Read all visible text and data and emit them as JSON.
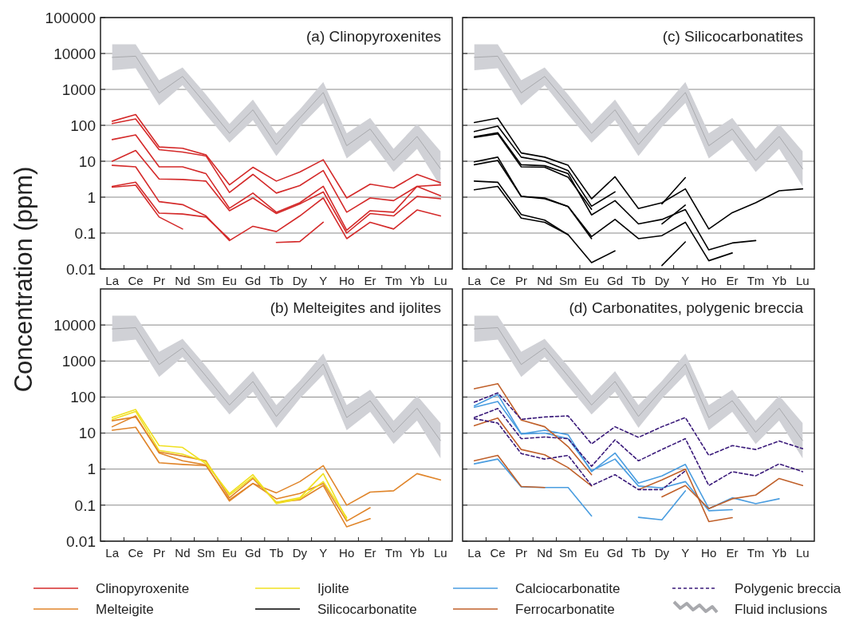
{
  "chart_data": [
    {
      "type": "line",
      "title": "(a) Clinopyroxenites",
      "ylabel": "Concentration (ppm)",
      "categories": [
        "La",
        "Ce",
        "Pr",
        "Nd",
        "Sm",
        "Eu",
        "Gd",
        "Tb",
        "Dy",
        "Y",
        "Ho",
        "Er",
        "Tm",
        "Yb",
        "Lu"
      ],
      "log": true,
      "ylim": [
        0.01,
        100000
      ],
      "yticks": [
        0.01,
        0.1,
        1,
        10,
        100,
        1000,
        10000,
        100000
      ],
      "grid": "y",
      "legend": "bottom",
      "series": [
        {
          "name": "Clinopyroxenite",
          "color": "#d42a2a",
          "values": [
            130,
            200,
            25,
            23,
            15,
            2.2,
            6.8,
            2.8,
            5,
            11,
            0.95,
            2.3,
            1.8,
            4.3,
            2.5
          ]
        },
        {
          "color": "#d42a2a",
          "values": [
            112,
            150,
            21,
            18,
            14,
            1.35,
            4.3,
            1.3,
            2.1,
            5.5,
            0.38,
            0.95,
            0.8,
            2.0,
            2.2
          ]
        },
        {
          "color": "#d42a2a",
          "values": [
            40,
            54,
            7,
            7,
            4.5,
            0.49,
            1.3,
            0.38,
            0.7,
            2,
            0.12,
            0.42,
            0.38,
            2.0,
            1.1
          ]
        },
        {
          "color": "#d42a2a",
          "values": [
            10,
            20,
            3.2,
            3.1,
            2.8,
            0.42,
            0.95,
            0.35,
            0.65,
            1.4,
            0.1,
            0.35,
            0.3,
            1.05,
            0.9
          ]
        },
        {
          "color": "#d42a2a",
          "values": [
            7.7,
            7,
            0.75,
            0.62,
            0.3,
            0.062,
            0.155,
            0.11,
            0.3,
            0.95,
            0.07,
            0.2,
            0.13,
            0.44,
            0.3
          ]
        },
        {
          "color": "#d42a2a",
          "values": [
            2,
            2.6,
            0.36,
            0.34,
            0.28,
            0.068,
            null,
            null,
            null,
            null,
            null,
            null,
            null,
            null,
            null
          ]
        },
        {
          "color": "#d42a2a",
          "values": [
            1.9,
            2.15,
            0.28,
            0.13,
            null,
            null,
            null,
            null,
            null,
            null,
            null,
            null,
            null,
            null,
            null
          ]
        },
        {
          "color": "#d42a2a",
          "values": [
            null,
            null,
            null,
            null,
            null,
            null,
            null,
            0.055,
            0.058,
            0.2,
            null,
            null,
            null,
            null,
            null
          ]
        },
        {
          "color": "#a8a9ad",
          "values": [
            7800,
            8400,
            800,
            2300,
            380,
            60,
            270,
            29,
            160,
            820,
            27,
            79,
            10.5,
            49,
            6.2
          ],
          "lower": [
            3400,
            3900,
            360,
            1300,
            200,
            33,
            140,
            14,
            90,
            420,
            12,
            39,
            5,
            22,
            2
          ],
          "upper": [
            18000,
            18000,
            1800,
            4100,
            720,
            110,
            520,
            60,
            280,
            1600,
            60,
            160,
            22,
            110,
            19
          ]
        }
      ]
    },
    {
      "type": "line",
      "title": "(b) Melteigites and ijolites",
      "categories": [
        "La",
        "Ce",
        "Pr",
        "Nd",
        "Sm",
        "Eu",
        "Gd",
        "Tb",
        "Dy",
        "Y",
        "Ho",
        "Er",
        "Tm",
        "Yb",
        "Lu"
      ],
      "log": true,
      "ylim": [
        0.01,
        100000
      ],
      "yticks": [
        0.01,
        0.1,
        1,
        10,
        100,
        1000,
        10000
      ],
      "grid": "y",
      "legend": "bottom",
      "series": [
        {
          "name": "Melteigite",
          "color": "#e0852a",
          "values": [
            12,
            14.5,
            1.5,
            1.35,
            1.25,
            0.14,
            0.4,
            0.22,
            0.45,
            1.25,
            0.1,
            0.23,
            0.25,
            0.75,
            0.5
          ]
        },
        {
          "color": "#e0852a",
          "values": [
            15,
            30,
            2.8,
            1.7,
            1.3,
            0.13,
            0.4,
            0.15,
            0.21,
            0.4,
            0.036,
            0.085,
            null,
            null,
            null
          ]
        },
        {
          "color": "#e0852a",
          "values": [
            22,
            28,
            3,
            2.3,
            1.7,
            0.16,
            0.55,
            0.12,
            0.14,
            0.35,
            0.025,
            0.042,
            null,
            null,
            null
          ]
        },
        {
          "name": "Ijolite",
          "color": "#f0e020",
          "values": [
            27,
            45,
            4.5,
            4,
            1.4,
            0.21,
            0.7,
            0.11,
            0.15,
            0.45,
            0.045,
            null,
            null,
            null,
            null
          ]
        },
        {
          "color": "#f0e020",
          "values": [
            24,
            40,
            3.3,
            2.6,
            1.6,
            0.19,
            0.6,
            0.12,
            0.16,
            0.75,
            0.04,
            null,
            null,
            null,
            null
          ]
        },
        {
          "color": "#a8a9ad",
          "values": [
            7800,
            8400,
            800,
            2300,
            380,
            60,
            270,
            29,
            160,
            820,
            27,
            79,
            10.5,
            49,
            6.2
          ],
          "lower": [
            3400,
            3900,
            360,
            1300,
            200,
            33,
            140,
            14,
            90,
            420,
            12,
            39,
            5,
            22,
            2
          ],
          "upper": [
            18000,
            18000,
            1800,
            4100,
            720,
            110,
            520,
            60,
            280,
            1600,
            60,
            160,
            22,
            110,
            19
          ]
        }
      ]
    },
    {
      "type": "line",
      "title": "(c) Silicocarbonatites",
      "categories": [
        "La",
        "Ce",
        "Pr",
        "Nd",
        "Sm",
        "Eu",
        "Gd",
        "Tb",
        "Dy",
        "Y",
        "Ho",
        "Er",
        "Tm",
        "Yb",
        "Lu"
      ],
      "log": true,
      "ylim": [
        0.01,
        100000
      ],
      "yticks": [
        0.01,
        0.1,
        1,
        10,
        100,
        1000,
        10000,
        100000
      ],
      "grid": "y",
      "legend": "bottom",
      "tick_labels": "x",
      "series": [
        {
          "name": "Silicocarbonatite",
          "color": "#000000",
          "values": [
            120,
            158,
            17,
            13,
            7.7,
            0.9,
            3.7,
            0.48,
            0.7,
            1.7,
            0.13,
            0.37,
            0.7,
            1.5,
            1.7
          ]
        },
        {
          "color": "#000000",
          "values": [
            67,
            95,
            13,
            10,
            5.5,
            0.56,
            1.4,
            null,
            null,
            null,
            null,
            null,
            null,
            null,
            null
          ]
        },
        {
          "color": "#000000",
          "values": [
            48,
            62,
            8,
            7.5,
            4.5,
            0.32,
            0.8,
            0.18,
            0.24,
            0.45,
            0.034,
            0.053,
            0.062,
            null,
            null
          ]
        },
        {
          "color": "#000000",
          "values": [
            46,
            58,
            7,
            6.8,
            3.6,
            0.46,
            null,
            null,
            null,
            null,
            null,
            null,
            null,
            null,
            null
          ]
        },
        {
          "color": "#000000",
          "values": [
            9.6,
            13,
            1.05,
            0.9,
            0.55,
            0.08,
            0.24,
            0.07,
            0.085,
            0.2,
            0.017,
            0.028,
            null,
            null,
            null
          ]
        },
        {
          "color": "#000000",
          "values": [
            8,
            10.5,
            1.05,
            0.95,
            0.55,
            0.07,
            null,
            null,
            null,
            null,
            null,
            null,
            null,
            null,
            null
          ]
        },
        {
          "color": "#000000",
          "values": [
            2.8,
            2.6,
            0.33,
            0.23,
            0.09,
            0.015,
            0.032,
            null,
            null,
            null,
            null,
            null,
            null,
            null,
            null
          ]
        },
        {
          "color": "#000000",
          "values": [
            1.6,
            2,
            0.26,
            0.2,
            0.09,
            null,
            null,
            null,
            null,
            null,
            null,
            null,
            null,
            null,
            null
          ]
        },
        {
          "color": "#000000",
          "values": [
            null,
            null,
            null,
            null,
            null,
            null,
            null,
            null,
            0.65,
            3.5,
            null,
            null,
            null,
            null,
            null
          ]
        },
        {
          "color": "#000000",
          "values": [
            null,
            null,
            null,
            null,
            null,
            null,
            null,
            null,
            0.18,
            0.6,
            null,
            null,
            null,
            null,
            null
          ]
        },
        {
          "color": "#000000",
          "values": [
            null,
            null,
            null,
            null,
            null,
            null,
            null,
            null,
            0.0125,
            0.057,
            null,
            null,
            null,
            null,
            null
          ]
        },
        {
          "color": "#a8a9ad",
          "values": [
            7800,
            8400,
            800,
            2300,
            380,
            60,
            270,
            29,
            160,
            820,
            27,
            79,
            10.5,
            49,
            6.2
          ],
          "lower": [
            3400,
            3900,
            360,
            1300,
            200,
            33,
            140,
            14,
            90,
            420,
            12,
            39,
            5,
            22,
            2
          ],
          "upper": [
            18000,
            18000,
            1800,
            4100,
            720,
            110,
            520,
            60,
            280,
            1600,
            60,
            160,
            22,
            110,
            19
          ]
        }
      ]
    },
    {
      "type": "line",
      "title": "(d) Carbonatites, polygenic breccia",
      "categories": [
        "La",
        "Ce",
        "Pr",
        "Nd",
        "Sm",
        "Eu",
        "Gd",
        "Tb",
        "Dy",
        "Y",
        "Ho",
        "Er",
        "Tm",
        "Yb",
        "Lu"
      ],
      "log": true,
      "ylim": [
        0.01,
        100000
      ],
      "yticks": [
        0.01,
        0.1,
        1,
        10,
        100,
        1000,
        10000
      ],
      "grid": "y",
      "legend": "bottom",
      "tick_labels": "x",
      "series": [
        {
          "name": "Calciocarbonatite",
          "color": "#4a9de0",
          "values": [
            57,
            118,
            9.5,
            12,
            9,
            0.85,
            2.8,
            0.41,
            0.65,
            1.35,
            0.08,
            0.16,
            0.11,
            0.15,
            null
          ]
        },
        {
          "color": "#4a9de0",
          "values": [
            52,
            75,
            9.5,
            10,
            7,
            0.9,
            1.9,
            0.34,
            0.3,
            0.45,
            0.07,
            0.075,
            null,
            null,
            null
          ]
        },
        {
          "color": "#4a9de0",
          "values": [
            1.4,
            1.9,
            0.32,
            0.31,
            0.31,
            0.05,
            null,
            null,
            null,
            null,
            null,
            null,
            null,
            null,
            null
          ]
        },
        {
          "color": "#4a9de0",
          "values": [
            null,
            null,
            null,
            null,
            null,
            null,
            null,
            0.046,
            0.039,
            0.25,
            null,
            null,
            null,
            null,
            null
          ]
        },
        {
          "name": "Ferrocarbonatite",
          "color": "#c0602a",
          "values": [
            170,
            235,
            23,
            15,
            4.2,
            0.7,
            null,
            null,
            null,
            null,
            null,
            null,
            null,
            null,
            null
          ]
        },
        {
          "color": "#c0602a",
          "values": [
            16,
            26,
            3.5,
            2.5,
            1.1,
            0.34,
            null,
            null,
            null,
            null,
            null,
            null,
            null,
            null,
            null
          ]
        },
        {
          "color": "#c0602a",
          "values": [
            null,
            null,
            null,
            null,
            null,
            null,
            null,
            0.27,
            0.5,
            1.0,
            0.035,
            0.045,
            null,
            null,
            null
          ]
        },
        {
          "color": "#c0602a",
          "values": [
            null,
            null,
            null,
            null,
            null,
            null,
            null,
            null,
            0.17,
            0.35,
            0.08,
            0.15,
            0.19,
            0.55,
            0.35
          ]
        },
        {
          "color": "#c0602a",
          "values": [
            1.7,
            2.4,
            0.33,
            0.31,
            null,
            null,
            null,
            null,
            null,
            null,
            null,
            null,
            null,
            null,
            null
          ]
        },
        {
          "name": "Polygenic breccia",
          "color": "#3a1a7a",
          "line_style": "dashed",
          "values": [
            72,
            130,
            24,
            28,
            30,
            5,
            15,
            7.6,
            15,
            27,
            2.4,
            4.5,
            3.5,
            6,
            3.7
          ]
        },
        {
          "color": "#3a1a7a",
          "line_style": "dashed",
          "values": [
            27,
            48,
            7,
            7.8,
            7,
            1.2,
            6.5,
            1.7,
            3.5,
            7,
            0.35,
            0.85,
            0.65,
            1.4,
            0.85
          ]
        },
        {
          "color": "#3a1a7a",
          "line_style": "dashed",
          "values": [
            25,
            19,
            2.7,
            1.9,
            2.4,
            0.35,
            0.7,
            0.27,
            0.27,
            0.9,
            null,
            null,
            null,
            null,
            null
          ]
        },
        {
          "name": "Fluid inclusions",
          "color": "#a8a9ad",
          "values": [
            7800,
            8400,
            800,
            2300,
            380,
            60,
            270,
            29,
            160,
            820,
            27,
            79,
            10.5,
            49,
            6.2
          ],
          "lower": [
            3400,
            3900,
            360,
            1300,
            200,
            33,
            140,
            14,
            90,
            420,
            12,
            39,
            5,
            22,
            2
          ],
          "upper": [
            18000,
            18000,
            1800,
            4100,
            720,
            110,
            520,
            60,
            280,
            1600,
            60,
            160,
            22,
            110,
            19
          ]
        }
      ]
    }
  ]
}
